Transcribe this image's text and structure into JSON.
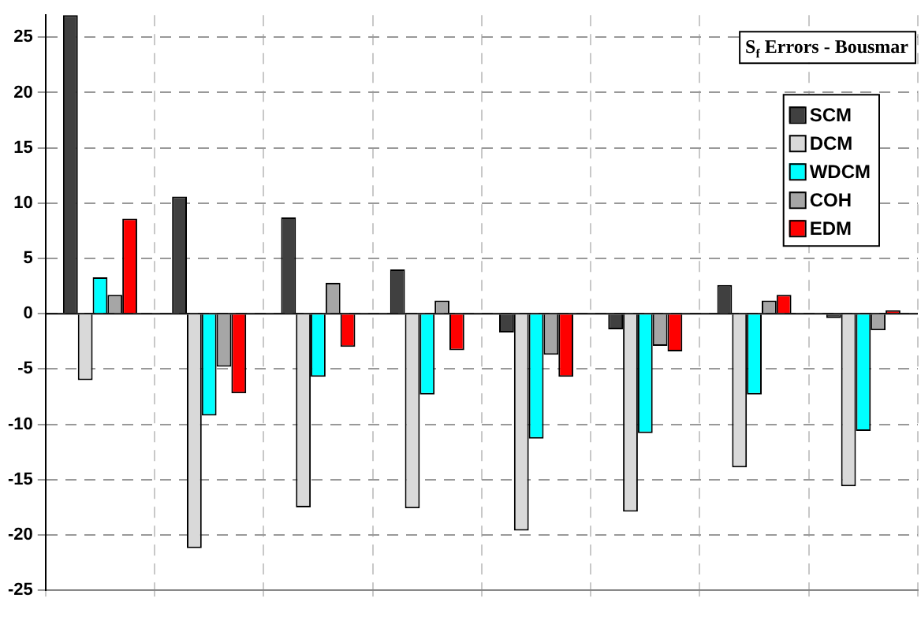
{
  "chart_data": {
    "type": "bar",
    "title": "S$_{f}$ Errors - Bousmar",
    "categories": [
      null,
      null,
      null,
      null,
      null,
      null,
      null,
      null
    ],
    "series": [
      {
        "name": "SCM",
        "color": "#404040",
        "values": [
          27,
          10.6,
          8.7,
          4.0,
          -1.7,
          -1.4,
          2.6,
          -0.4
        ]
      },
      {
        "name": "DCM",
        "color": "#d9d9d9",
        "values": [
          -6.0,
          -21.2,
          -17.5,
          -17.6,
          -19.6,
          -17.9,
          -13.9,
          -15.6
        ]
      },
      {
        "name": "WDCM",
        "color": "#00ffff",
        "values": [
          3.3,
          -9.2,
          -5.7,
          -7.3,
          -11.3,
          -10.8,
          -7.3,
          -10.6
        ]
      },
      {
        "name": "COH",
        "color": "#a6a6a6",
        "values": [
          1.7,
          -4.8,
          2.8,
          1.2,
          -3.7,
          -2.9,
          1.2,
          -1.5
        ]
      },
      {
        "name": "EDM",
        "color": "#ff0000",
        "values": [
          8.6,
          -7.2,
          -3.0,
          -3.3,
          -5.7,
          -3.4,
          1.7,
          0.3
        ]
      }
    ],
    "ylim": [
      -25,
      27
    ],
    "yticks": [
      -25,
      -20,
      -15,
      -10,
      -5,
      0,
      5,
      10,
      15,
      20,
      25
    ],
    "grid": true,
    "legend": "top right"
  }
}
